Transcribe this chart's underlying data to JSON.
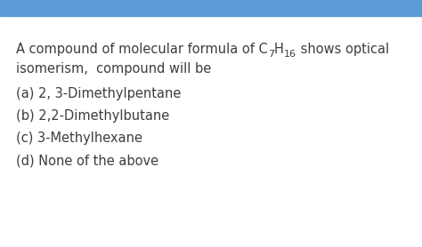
{
  "background_color": "#ffffff",
  "header_color": "#5b9bd5",
  "question_line2": "isomerism,  compound will be",
  "options": [
    "(a) 2, 3-Dimethylpentane",
    "(b) 2,2-Dimethylbutane",
    "(c) 3-Methylhexane",
    "(d) None of the above"
  ],
  "text_color": "#3d3d3d",
  "font_size": 10.5
}
